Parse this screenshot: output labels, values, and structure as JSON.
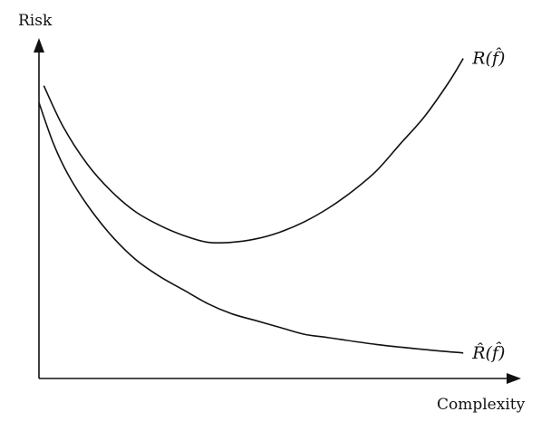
{
  "chart_data": {
    "type": "line",
    "title": "",
    "xlabel": "Complexity",
    "ylabel": "Risk",
    "xlim": [
      0,
      1
    ],
    "ylim": [
      0,
      1
    ],
    "grid": false,
    "series": [
      {
        "name": "R(f̂)",
        "x": [
          0.01,
          0.05,
          0.1,
          0.15,
          0.2,
          0.25,
          0.3,
          0.35,
          0.4,
          0.45,
          0.5,
          0.55,
          0.6,
          0.65,
          0.7,
          0.75,
          0.8,
          0.85,
          0.88
        ],
        "y": [
          0.86,
          0.74,
          0.63,
          0.55,
          0.49,
          0.45,
          0.42,
          0.4,
          0.4,
          0.41,
          0.43,
          0.46,
          0.5,
          0.55,
          0.61,
          0.69,
          0.77,
          0.87,
          0.94
        ]
      },
      {
        "name": "R̂(f̂)",
        "x": [
          0.0,
          0.03,
          0.06,
          0.1,
          0.15,
          0.2,
          0.25,
          0.3,
          0.35,
          0.4,
          0.45,
          0.5,
          0.55,
          0.6,
          0.7,
          0.8,
          0.88
        ],
        "y": [
          0.81,
          0.69,
          0.6,
          0.51,
          0.42,
          0.35,
          0.3,
          0.26,
          0.22,
          0.19,
          0.17,
          0.15,
          0.13,
          0.12,
          0.1,
          0.085,
          0.075
        ]
      }
    ]
  }
}
